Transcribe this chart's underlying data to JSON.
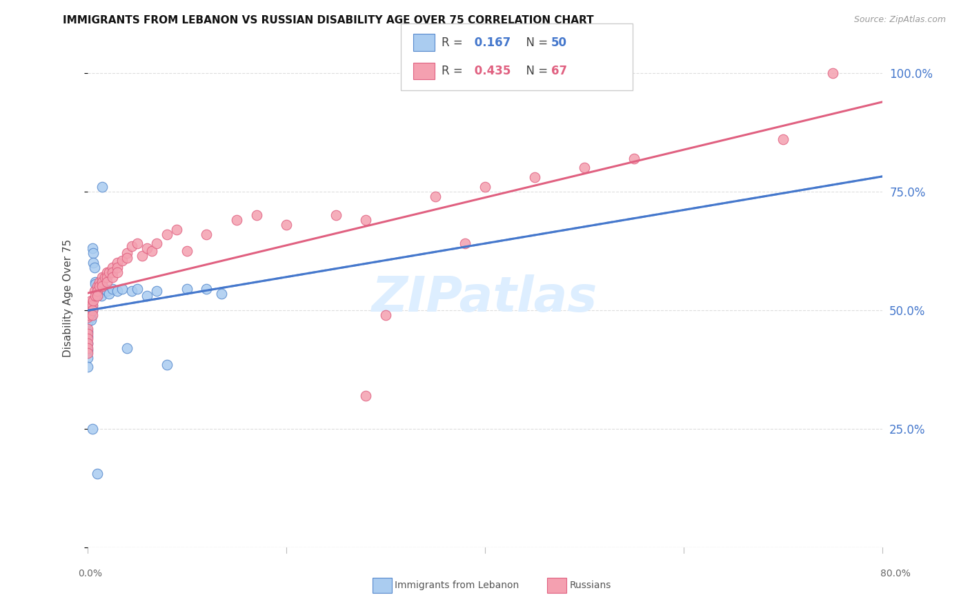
{
  "title": "IMMIGRANTS FROM LEBANON VS RUSSIAN DISABILITY AGE OVER 75 CORRELATION CHART",
  "source": "Source: ZipAtlas.com",
  "ylabel": "Disability Age Over 75",
  "y_ticks": [
    0.0,
    0.25,
    0.5,
    0.75,
    1.0
  ],
  "y_tick_labels": [
    "",
    "25.0%",
    "50.0%",
    "75.0%",
    "100.0%"
  ],
  "x_min": 0.0,
  "x_max": 0.8,
  "y_min": 0.0,
  "y_max": 1.05,
  "lebanon_R": 0.167,
  "lebanon_N": 50,
  "russian_R": 0.435,
  "russian_N": 67,
  "lebanon_color": "#aaccf0",
  "russian_color": "#f4a0b0",
  "lebanon_edge_color": "#5588cc",
  "russian_edge_color": "#e06080",
  "lebanon_line_color": "#4477cc",
  "russian_line_color": "#e06080",
  "right_tick_color": "#4477cc",
  "watermark_color": "#ddeeff",
  "grid_color": "#dddddd",
  "background_color": "#ffffff",
  "legend_label_lebanon": "Immigrants from Lebanon",
  "legend_label_russian": "Russians",
  "leb_x": [
    0.0,
    0.0,
    0.0,
    0.0,
    0.0,
    0.0,
    0.0,
    0.0,
    0.0,
    0.0,
    0.0,
    0.002,
    0.002,
    0.003,
    0.003,
    0.004,
    0.004,
    0.005,
    0.005,
    0.005,
    0.006,
    0.006,
    0.007,
    0.008,
    0.008,
    0.01,
    0.01,
    0.012,
    0.012,
    0.014,
    0.015,
    0.015,
    0.018,
    0.02,
    0.022,
    0.025,
    0.03,
    0.035,
    0.04,
    0.045,
    0.05,
    0.06,
    0.07,
    0.08,
    0.1,
    0.12,
    0.135,
    0.005,
    0.01,
    0.015
  ],
  "leb_y": [
    0.5,
    0.51,
    0.495,
    0.485,
    0.475,
    0.455,
    0.445,
    0.43,
    0.415,
    0.4,
    0.38,
    0.51,
    0.5,
    0.5,
    0.49,
    0.485,
    0.48,
    0.63,
    0.51,
    0.5,
    0.62,
    0.6,
    0.59,
    0.56,
    0.555,
    0.545,
    0.535,
    0.545,
    0.535,
    0.53,
    0.56,
    0.55,
    0.545,
    0.54,
    0.535,
    0.545,
    0.54,
    0.545,
    0.42,
    0.54,
    0.545,
    0.53,
    0.54,
    0.385,
    0.545,
    0.545,
    0.535,
    0.25,
    0.155,
    0.76
  ],
  "rus_x": [
    0.0,
    0.0,
    0.0,
    0.0,
    0.0,
    0.0,
    0.0,
    0.0,
    0.0,
    0.0,
    0.002,
    0.002,
    0.004,
    0.004,
    0.005,
    0.005,
    0.005,
    0.006,
    0.007,
    0.008,
    0.01,
    0.01,
    0.01,
    0.012,
    0.012,
    0.015,
    0.015,
    0.015,
    0.018,
    0.02,
    0.02,
    0.02,
    0.022,
    0.025,
    0.025,
    0.025,
    0.03,
    0.03,
    0.03,
    0.035,
    0.04,
    0.04,
    0.045,
    0.05,
    0.055,
    0.06,
    0.065,
    0.07,
    0.08,
    0.09,
    0.1,
    0.12,
    0.15,
    0.17,
    0.2,
    0.25,
    0.28,
    0.3,
    0.35,
    0.4,
    0.45,
    0.5,
    0.55,
    0.7,
    0.75,
    0.28,
    0.38
  ],
  "rus_y": [
    0.5,
    0.51,
    0.495,
    0.485,
    0.46,
    0.45,
    0.44,
    0.43,
    0.42,
    0.41,
    0.51,
    0.49,
    0.52,
    0.51,
    0.51,
    0.5,
    0.49,
    0.52,
    0.54,
    0.53,
    0.55,
    0.54,
    0.53,
    0.56,
    0.55,
    0.57,
    0.56,
    0.55,
    0.57,
    0.58,
    0.57,
    0.56,
    0.58,
    0.59,
    0.58,
    0.57,
    0.6,
    0.59,
    0.58,
    0.605,
    0.62,
    0.61,
    0.635,
    0.64,
    0.615,
    0.63,
    0.625,
    0.64,
    0.66,
    0.67,
    0.625,
    0.66,
    0.69,
    0.7,
    0.68,
    0.7,
    0.32,
    0.49,
    0.74,
    0.76,
    0.78,
    0.8,
    0.82,
    0.86,
    1.0,
    0.69,
    0.64
  ]
}
